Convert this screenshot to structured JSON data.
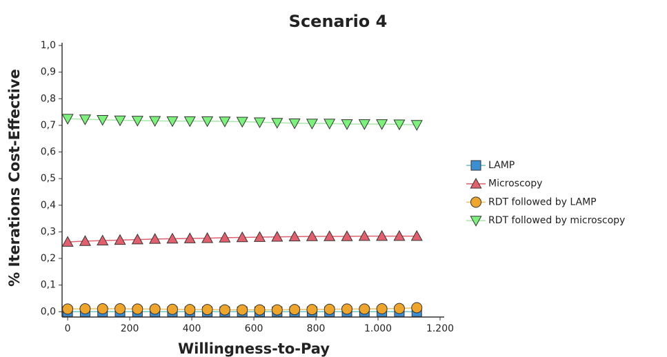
{
  "chart_data": {
    "type": "line",
    "title": "Scenario 4",
    "xlabel": "Willingness-to-Pay",
    "ylabel": "% Iterations Cost-Effective",
    "x": [
      0,
      56.25,
      112.5,
      168.75,
      225,
      281.25,
      337.5,
      393.75,
      450,
      506.25,
      562.5,
      618.75,
      675,
      731.25,
      787.5,
      843.75,
      900,
      956.25,
      1012.5,
      1068.75,
      1125
    ],
    "series": [
      {
        "name": "LAMP",
        "color": "#3d8fd1",
        "line_color": "#6cc4c4",
        "marker": "square",
        "values": [
          0,
          0,
          0,
          0,
          0,
          0,
          0,
          0,
          0,
          0,
          0,
          0,
          0,
          0,
          0,
          0,
          0,
          0,
          0,
          0,
          0
        ]
      },
      {
        "name": "Microscopy",
        "color": "#e0606e",
        "line_color": "#e0606e",
        "marker": "triangle-up",
        "values": [
          0.262,
          0.265,
          0.267,
          0.269,
          0.271,
          0.273,
          0.274,
          0.275,
          0.276,
          0.278,
          0.279,
          0.28,
          0.281,
          0.282,
          0.283,
          0.283,
          0.283,
          0.284,
          0.284,
          0.284,
          0.284
        ]
      },
      {
        "name": "RDT followed by LAMP",
        "color": "#eda52e",
        "line_color": "#e8c060",
        "marker": "circle",
        "values": [
          0.01,
          0.011,
          0.011,
          0.011,
          0.01,
          0.01,
          0.009,
          0.008,
          0.008,
          0.007,
          0.007,
          0.007,
          0.007,
          0.008,
          0.008,
          0.009,
          0.01,
          0.01,
          0.011,
          0.012,
          0.015
        ]
      },
      {
        "name": "RDT followed by microscopy",
        "color": "#7ef07e",
        "line_color": "#a8e8a8",
        "marker": "triangle-down",
        "values": [
          0.725,
          0.723,
          0.721,
          0.719,
          0.718,
          0.717,
          0.716,
          0.716,
          0.716,
          0.715,
          0.714,
          0.712,
          0.71,
          0.708,
          0.707,
          0.707,
          0.705,
          0.705,
          0.705,
          0.704,
          0.702
        ]
      }
    ],
    "xlim": [
      -18,
      1200
    ],
    "xticks": [
      0,
      200,
      400,
      600,
      800,
      {
        "value": 1000,
        "label": "1.000"
      },
      {
        "value": 1200,
        "label": "1.200"
      }
    ],
    "ylim": [
      -0.02,
      1.0
    ],
    "yticks": [
      {
        "value": 0,
        "label": "0,0"
      },
      {
        "value": 0.1,
        "label": "0,1"
      },
      {
        "value": 0.2,
        "label": "0,2"
      },
      {
        "value": 0.3,
        "label": "0,3"
      },
      {
        "value": 0.4,
        "label": "0,4"
      },
      {
        "value": 0.5,
        "label": "0,5"
      },
      {
        "value": 0.6,
        "label": "0,6"
      },
      {
        "value": 0.7,
        "label": "0,7"
      },
      {
        "value": 0.8,
        "label": "0,8"
      },
      {
        "value": 0.9,
        "label": "0,9"
      },
      {
        "value": 1.0,
        "label": "1,0"
      }
    ],
    "legend": "right"
  }
}
